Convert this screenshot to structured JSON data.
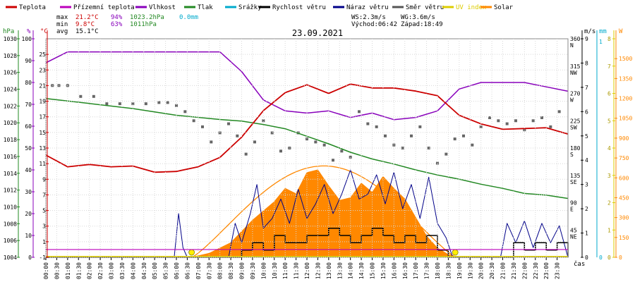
{
  "chart_data": {
    "type": "line",
    "title": "23.09.2021",
    "legend": [
      {
        "name": "Teplota",
        "color": "#cc0000"
      },
      {
        "name": "Přízemní teplota",
        "color": "#bb00bb"
      },
      {
        "name": "Vlhkost",
        "color": "#8800bb"
      },
      {
        "name": "Tlak",
        "color": "#228822"
      },
      {
        "name": "Srážky",
        "color": "#00aacc"
      },
      {
        "name": "Rychlost větru",
        "color": "#000000"
      },
      {
        "name": "Náraz větru",
        "color": "#000088"
      },
      {
        "name": "Směr větru",
        "color": "#555555"
      },
      {
        "name": "UV index",
        "color": "#ddcc00"
      },
      {
        "name": "Solar",
        "color": "#ff8800"
      }
    ],
    "stats": {
      "max_label": "max",
      "max_temp": "21.2°C",
      "max_hum": "94%",
      "max_press": "1023.2hPa",
      "max_rain": "0.0mm",
      "min_label": "min",
      "min_temp": "9.8°C",
      "min_hum": "63%",
      "min_press": "1011hPa",
      "avg_label": "avg",
      "avg_temp": "15.1°C"
    },
    "wind_info": {
      "ws": "WS:2.3m/s",
      "wg": "WG:3.6m/s",
      "sunrise": "Východ:06:42",
      "sunset": "Západ:18:49"
    },
    "axes": {
      "hpa": {
        "unit": "hPa",
        "ticks": [
          "1030",
          "1028",
          "1026",
          "1024",
          "1022",
          "1020",
          "1018",
          "1016",
          "1014",
          "1012",
          "1010",
          "1008",
          "1006",
          "1004"
        ]
      },
      "pct": {
        "unit": "%",
        "ticks": [
          "100",
          "90",
          "80",
          "70",
          "60",
          "50",
          "40",
          "30",
          "20",
          "10",
          "0"
        ]
      },
      "degc": {
        "unit": "°C",
        "ticks": [
          "25",
          "23",
          "21",
          "19",
          "17",
          "15",
          "13",
          "11",
          "9",
          "7",
          "5",
          "3",
          "1",
          "-1"
        ]
      },
      "ms": {
        "unit": "m/s",
        "ticks": [
          "9",
          "8",
          "7",
          "6",
          "5",
          "4",
          "3",
          "2",
          "1",
          "0"
        ]
      },
      "mm": {
        "unit": "mm",
        "ticks": [
          "1",
          "0"
        ]
      },
      "uv": {
        "unit": "W",
        "ticks": [
          "8",
          "7",
          "6",
          "5",
          "4",
          "3",
          "2",
          "1",
          "0"
        ]
      },
      "solar": {
        "ticks": [
          "1500",
          "1350",
          "1200",
          "1050",
          "900",
          "750",
          "600",
          "450",
          "300",
          "150",
          "0"
        ]
      },
      "dir": {
        "ticks": [
          "360",
          "N",
          "315",
          "NW",
          "270",
          "W",
          "225",
          "SW",
          "180",
          "S",
          "135",
          "SE",
          "90",
          "E",
          "45",
          "NE"
        ]
      },
      "x_label": "čas",
      "x_ticks": [
        "00:00",
        "00:30",
        "01:00",
        "01:30",
        "02:00",
        "02:30",
        "03:00",
        "03:30",
        "04:00",
        "04:30",
        "05:00",
        "05:30",
        "06:00",
        "06:30",
        "07:00",
        "07:30",
        "08:00",
        "08:30",
        "09:00",
        "09:30",
        "10:00",
        "10:30",
        "11:00",
        "11:30",
        "12:00",
        "12:30",
        "13:00",
        "13:30",
        "14:00",
        "14:30",
        "15:00",
        "15:30",
        "16:00",
        "16:30",
        "17:00",
        "17:30",
        "18:00",
        "18:30",
        "19:00",
        "19:30",
        "20:00",
        "20:30",
        "21:00",
        "21:30",
        "22:00",
        "22:30",
        "23:00",
        "23:30"
      ]
    },
    "x_range_hours": [
      0,
      24
    ],
    "temp_range_c": [
      -1,
      27
    ],
    "humidity_range_pct": [
      0,
      100
    ],
    "series": [
      {
        "name": "Teplota",
        "unit": "°C",
        "color": "#cc0000",
        "x": [
          0,
          1,
          2,
          3,
          4,
          5,
          6,
          7,
          8,
          9,
          10,
          11,
          12,
          13,
          14,
          15,
          16,
          17,
          18,
          19,
          20,
          21,
          22,
          23,
          24
        ],
        "values": [
          12.1,
          10.6,
          10.9,
          10.6,
          10.7,
          9.9,
          10.0,
          10.6,
          11.8,
          14.4,
          17.8,
          20.1,
          21.1,
          20.0,
          21.2,
          20.7,
          20.7,
          20.3,
          19.7,
          17.2,
          16.1,
          15.4,
          15.5,
          15.6,
          14.8
        ]
      },
      {
        "name": "Vlhkost",
        "unit": "%",
        "color": "#8800bb",
        "x": [
          0,
          1,
          2,
          3,
          4,
          5,
          6,
          7,
          8,
          9,
          10,
          11,
          12,
          13,
          14,
          15,
          16,
          17,
          18,
          19,
          20,
          21,
          22,
          23,
          24
        ],
        "values": [
          89,
          94,
          94,
          94,
          94,
          94,
          94,
          94,
          94,
          85,
          72,
          67,
          66,
          67,
          64,
          66,
          63,
          64,
          67,
          77,
          80,
          80,
          80,
          78,
          76
        ]
      },
      {
        "name": "Tlak",
        "unit": "hPa",
        "color": "#228822",
        "x": [
          0,
          2,
          4,
          6,
          8,
          9,
          10,
          11,
          12,
          13,
          14,
          15,
          16,
          17,
          18,
          19,
          20,
          21,
          22,
          23,
          24
        ],
        "values": [
          1022.9,
          1022.3,
          1021.7,
          1020.9,
          1020.4,
          1020.2,
          1019.8,
          1019.3,
          1018.4,
          1017.5,
          1016.5,
          1015.7,
          1015.1,
          1014.4,
          1013.8,
          1013.3,
          1012.7,
          1012.2,
          1011.6,
          1011.4,
          1011.0
        ]
      },
      {
        "name": "Solar",
        "unit": "W",
        "color": "#ff8800",
        "x": [
          0,
          6.7,
          7.5,
          8.5,
          9.5,
          10.5,
          11.0,
          11.5,
          12.0,
          12.5,
          13.0,
          13.5,
          14.0,
          14.5,
          15.0,
          15.5,
          16.0,
          16.5,
          17.0,
          17.5,
          18.0,
          18.5,
          19.0,
          24
        ],
        "values": [
          0,
          0,
          30,
          110,
          280,
          420,
          520,
          480,
          640,
          660,
          540,
          430,
          450,
          560,
          490,
          610,
          520,
          440,
          300,
          160,
          70,
          20,
          0,
          0
        ]
      },
      {
        "name": "Rychlost větru",
        "unit": "m/s",
        "color": "#000000",
        "x": [
          0,
          8.5,
          9.0,
          9.5,
          10.0,
          10.5,
          11.0,
          11.5,
          12.0,
          12.5,
          13.0,
          13.5,
          14.0,
          14.5,
          15.0,
          15.5,
          16.0,
          16.5,
          17.0,
          17.5,
          18.0,
          18.5,
          21.0,
          21.5,
          22.0,
          22.5,
          23.0,
          23.5,
          24
        ],
        "values": [
          0,
          0,
          0.3,
          0.6,
          0.3,
          0.9,
          0.6,
          0.6,
          0.9,
          0.9,
          1.2,
          0.9,
          0.6,
          0.9,
          1.2,
          0.9,
          0.6,
          0.9,
          0.6,
          0.9,
          0.3,
          0,
          0,
          0.6,
          0.3,
          0.6,
          0.3,
          0.6,
          0
        ]
      },
      {
        "name": "Náraz větru",
        "unit": "m/s",
        "color": "#000088",
        "x": [
          0,
          5.9,
          6.1,
          6.3,
          6.5,
          8.4,
          8.7,
          9.0,
          9.4,
          9.7,
          10.0,
          10.4,
          10.8,
          11.2,
          11.6,
          12.0,
          12.4,
          12.8,
          13.2,
          13.6,
          14.0,
          14.4,
          14.8,
          15.2,
          15.6,
          16.0,
          16.4,
          16.8,
          17.2,
          17.6,
          18.0,
          18.4,
          18.7,
          20.9,
          21.2,
          21.6,
          22.0,
          22.4,
          22.8,
          23.2,
          23.6,
          24
        ],
        "values": [
          0,
          0,
          1.8,
          0.4,
          0,
          0,
          1.4,
          0.6,
          1.8,
          3.0,
          1.2,
          1.6,
          2.4,
          1.4,
          2.8,
          1.6,
          2.2,
          3.0,
          1.8,
          2.6,
          3.6,
          2.4,
          2.6,
          3.4,
          2.2,
          3.5,
          2.0,
          3.0,
          1.6,
          3.3,
          1.4,
          0.8,
          0,
          0,
          1.4,
          0.6,
          1.5,
          0.4,
          1.4,
          0.6,
          1.3,
          0
        ]
      },
      {
        "name": "UV index",
        "unit": "",
        "color": "#ddcc00",
        "x": [
          0,
          24
        ],
        "values": [
          0,
          0
        ]
      }
    ],
    "wind_direction_deg": {
      "x": [
        0.3,
        0.6,
        1.0,
        1.6,
        2.2,
        2.8,
        3.4,
        4.0,
        4.6,
        5.2,
        5.6,
        6.0,
        6.4,
        6.8,
        7.2,
        7.6,
        8.0,
        8.4,
        8.8,
        9.2,
        9.6,
        10.0,
        10.4,
        10.8,
        11.2,
        11.6,
        12.0,
        12.4,
        12.8,
        13.2,
        13.6,
        14.0,
        14.4,
        14.8,
        15.2,
        15.6,
        16.0,
        16.4,
        16.8,
        17.2,
        17.6,
        18.0,
        18.4,
        18.8,
        19.2,
        19.6,
        20.0,
        20.4,
        20.8,
        21.2,
        21.6,
        22.0,
        22.4,
        22.8,
        23.2,
        23.6
      ],
      "values": [
        283,
        283,
        283,
        265,
        265,
        253,
        253,
        253,
        253,
        255,
        255,
        250,
        240,
        225,
        215,
        190,
        205,
        220,
        200,
        170,
        190,
        225,
        205,
        175,
        180,
        205,
        195,
        190,
        185,
        160,
        175,
        165,
        240,
        220,
        215,
        200,
        185,
        180,
        200,
        215,
        180,
        155,
        170,
        195,
        200,
        185,
        215,
        230,
        225,
        220,
        225,
        210,
        225,
        230,
        215,
        240
      ]
    }
  }
}
